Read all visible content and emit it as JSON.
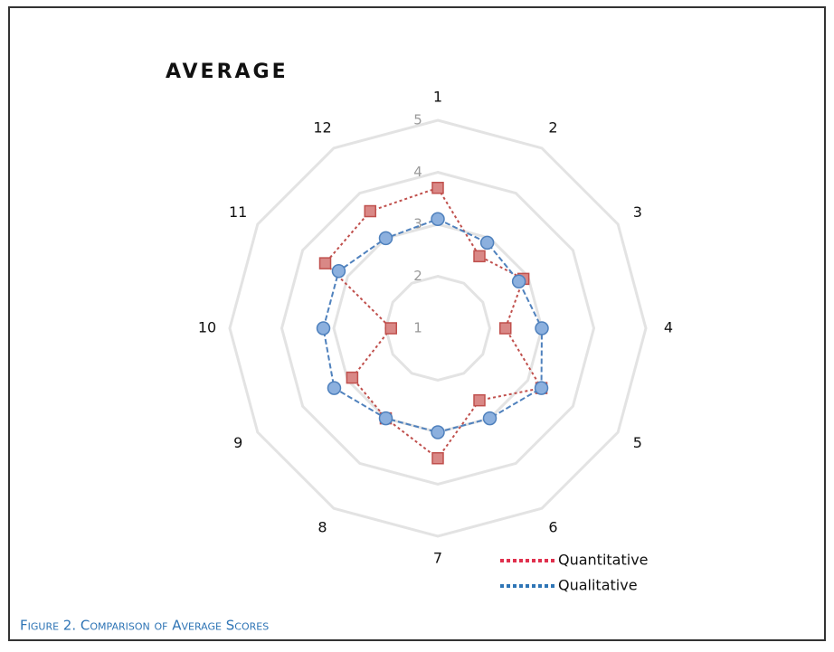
{
  "chart_data": {
    "type": "radar",
    "title": "AVERAGE",
    "caption": "Figure 2. Comparison of Average Scores",
    "categories": [
      "1",
      "2",
      "3",
      "4",
      "5",
      "6",
      "7",
      "8",
      "9",
      "10",
      "11",
      "12"
    ],
    "series": [
      {
        "name": "Quantitative",
        "color": "#c0504d",
        "marker": "square",
        "values": [
          3.7,
          2.6,
          2.9,
          2.3,
          3.3,
          2.6,
          3.5,
          3.0,
          2.9,
          1.9,
          3.5,
          3.6
        ]
      },
      {
        "name": "Qualitative",
        "color": "#4f81bd",
        "marker": "circle",
        "values": [
          3.1,
          2.9,
          2.8,
          3.0,
          3.3,
          3.0,
          3.0,
          3.0,
          3.3,
          3.2,
          3.2,
          3.0
        ]
      }
    ],
    "rlim": [
      1,
      5
    ],
    "rticks": [
      1,
      2,
      3,
      4,
      5
    ],
    "grid": true,
    "legend": "lower right"
  }
}
